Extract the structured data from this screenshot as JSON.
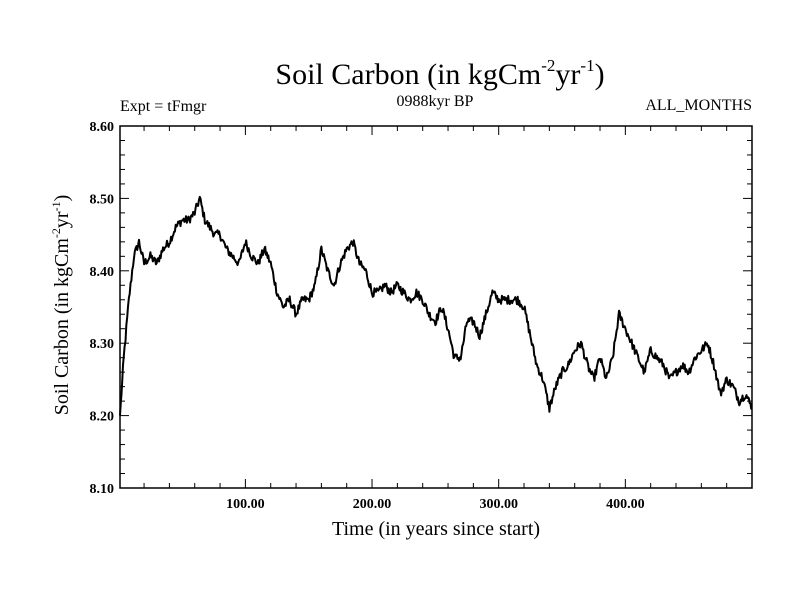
{
  "chart_data": {
    "type": "line",
    "title_main": "Soil Carbon (in kgCm",
    "title_sup1": "-2",
    "title_mid": "yr",
    "title_sup2": "-1",
    "title_end": ")",
    "left_note": "Expt = tFmgr",
    "center_note": "0988kyr BP",
    "right_note": "ALL_MONTHS",
    "xlabel": "Time (in years since start)",
    "ylabel_main": "Soil Carbon (in kgCm",
    "ylabel_sup1": "-2",
    "ylabel_mid": "yr",
    "ylabel_sup2": "-1",
    "ylabel_end": ")",
    "xlim": [
      1,
      500
    ],
    "ylim": [
      8.1,
      8.6
    ],
    "xticks": [
      100,
      200,
      300,
      400
    ],
    "xtick_labels": [
      "100.00",
      "200.00",
      "300.00",
      "400.00"
    ],
    "yticks": [
      8.1,
      8.2,
      8.3,
      8.4,
      8.5,
      8.6
    ],
    "ytick_labels": [
      "8.10",
      "8.20",
      "8.30",
      "8.40",
      "8.50",
      "8.60"
    ],
    "series": [
      {
        "name": "Soil Carbon",
        "x": [
          1,
          4,
          8,
          12,
          16,
          20,
          25,
          30,
          35,
          40,
          45,
          50,
          55,
          60,
          64,
          68,
          72,
          76,
          80,
          85,
          90,
          95,
          100,
          105,
          110,
          115,
          120,
          125,
          130,
          135,
          140,
          145,
          150,
          155,
          160,
          165,
          170,
          175,
          180,
          185,
          190,
          195,
          200,
          205,
          210,
          215,
          220,
          225,
          230,
          235,
          240,
          245,
          250,
          255,
          260,
          265,
          270,
          275,
          280,
          285,
          290,
          295,
          300,
          305,
          310,
          315,
          320,
          325,
          330,
          335,
          340,
          345,
          350,
          355,
          360,
          365,
          370,
          375,
          380,
          385,
          390,
          395,
          400,
          405,
          410,
          415,
          420,
          425,
          430,
          435,
          440,
          445,
          450,
          455,
          460,
          465,
          470,
          475,
          480,
          485,
          490,
          495,
          500
        ],
        "y": [
          8.2,
          8.28,
          8.36,
          8.42,
          8.44,
          8.41,
          8.42,
          8.41,
          8.43,
          8.44,
          8.46,
          8.47,
          8.47,
          8.48,
          8.5,
          8.47,
          8.46,
          8.45,
          8.45,
          8.43,
          8.42,
          8.41,
          8.44,
          8.42,
          8.41,
          8.43,
          8.41,
          8.37,
          8.35,
          8.36,
          8.34,
          8.36,
          8.36,
          8.38,
          8.43,
          8.4,
          8.38,
          8.41,
          8.43,
          8.44,
          8.41,
          8.4,
          8.37,
          8.37,
          8.38,
          8.37,
          8.38,
          8.37,
          8.36,
          8.37,
          8.36,
          8.34,
          8.33,
          8.35,
          8.32,
          8.28,
          8.28,
          8.33,
          8.33,
          8.31,
          8.34,
          8.37,
          8.36,
          8.36,
          8.36,
          8.36,
          8.35,
          8.31,
          8.27,
          8.25,
          8.21,
          8.24,
          8.26,
          8.27,
          8.29,
          8.3,
          8.27,
          8.25,
          8.28,
          8.25,
          8.28,
          8.34,
          8.32,
          8.3,
          8.28,
          8.26,
          8.29,
          8.28,
          8.27,
          8.25,
          8.26,
          8.27,
          8.26,
          8.28,
          8.29,
          8.3,
          8.27,
          8.23,
          8.25,
          8.24,
          8.22,
          8.23,
          8.21
        ]
      }
    ]
  }
}
